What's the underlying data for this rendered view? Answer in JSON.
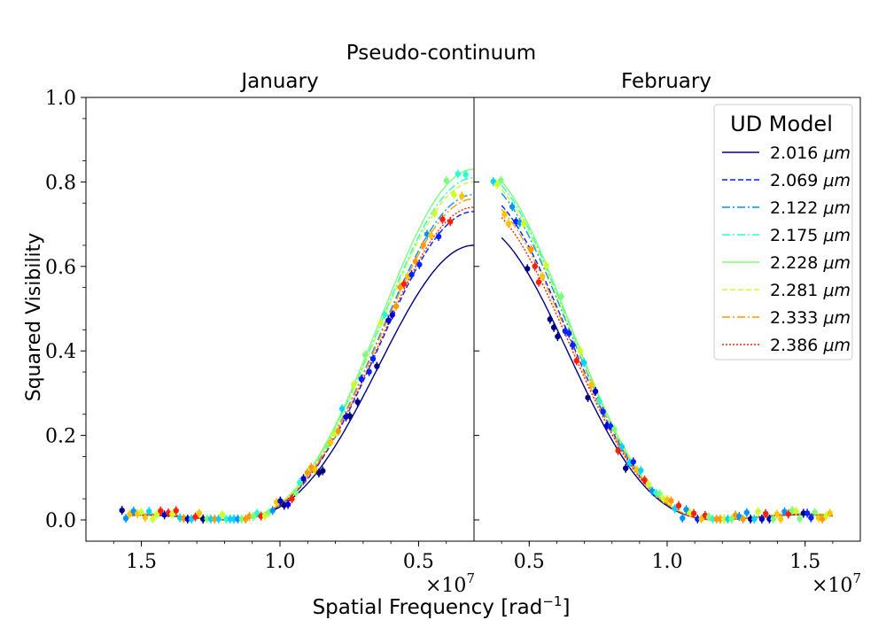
{
  "chart_data": {
    "type": "line",
    "title": "Pseudo-continuum",
    "xlabel": "Spatial Frequency [rad",
    "xlabel_sup": "−1",
    "xlabel_close": "]",
    "ylabel": "Squared Visibility",
    "x_multiplier": "×10",
    "x_multiplier_exp": "7",
    "ylim": [
      -0.05,
      1.0
    ],
    "yticks": [
      0.0,
      0.2,
      0.4,
      0.6,
      0.8,
      1.0
    ],
    "ytick_labels": [
      "0.0",
      "0.2",
      "0.4",
      "0.6",
      "0.8",
      "1.0"
    ],
    "legend": {
      "title": "UD Model",
      "location": "upper right",
      "unit": "μm",
      "entries": [
        {
          "label": "2.016",
          "color": "#000080",
          "dash": "solid"
        },
        {
          "label": "2.069",
          "color": "#0022ff",
          "dash": "dashed"
        },
        {
          "label": "2.122",
          "color": "#0094ff",
          "dash": "dashdot"
        },
        {
          "label": "2.175",
          "color": "#29ffce",
          "dash": "dashdot"
        },
        {
          "label": "2.228",
          "color": "#7dff7a",
          "dash": "solid"
        },
        {
          "label": "2.281",
          "color": "#ceff29",
          "dash": "dashed"
        },
        {
          "label": "2.333",
          "color": "#ff9b00",
          "dash": "dashdot"
        },
        {
          "label": "2.386",
          "color": "#ff1f00",
          "dash": "dotted"
        }
      ]
    },
    "panels": [
      {
        "name": "January",
        "xlim": [
          1.7,
          0.3
        ],
        "xticks": [
          1.5,
          1.0,
          0.5
        ],
        "xtick_labels": [
          "1.5",
          "1.0",
          "0.5"
        ],
        "model_end": 0.3,
        "peaks": [
          0.65,
          0.73,
          0.77,
          0.81,
          0.83,
          0.8,
          0.76,
          0.74
        ],
        "obs_start": 1.57,
        "obs_end": 0.33
      },
      {
        "name": "February",
        "xlim": [
          0.3,
          1.7
        ],
        "xticks": [
          0.5,
          1.0,
          1.5
        ],
        "xtick_labels": [
          "0.5",
          "1.0",
          "1.5"
        ],
        "model_end": 1.6,
        "peaks": [
          0.7,
          0.78,
          0.81,
          0.83,
          0.84,
          0.82,
          0.77,
          0.75
        ],
        "obs_start": 0.37,
        "obs_end": 1.59
      }
    ],
    "model": "uniform disk squared visibility, V² = peak · [2J1(k·f)/(k·f)]²"
  }
}
